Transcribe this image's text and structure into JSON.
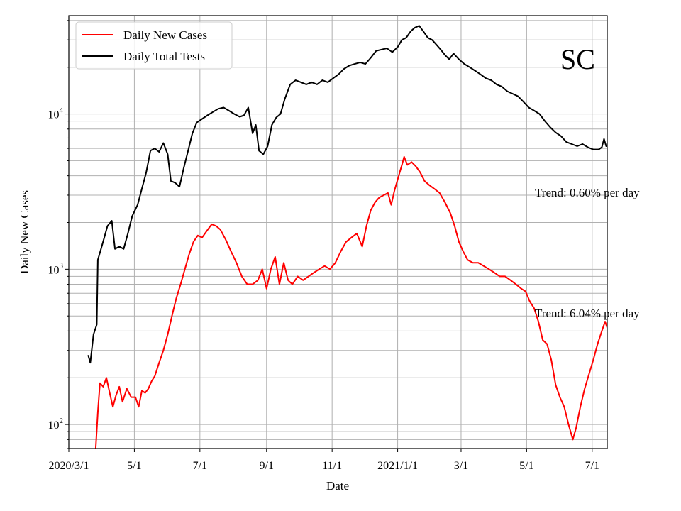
{
  "chart_data": {
    "type": "line",
    "xlabel": "Date",
    "ylabel": "Daily New Cases",
    "yscale": "log",
    "ylim": [
      70,
      43000
    ],
    "xlim": [
      "2020-03-01",
      "2021-07-15"
    ],
    "x_ticks": [
      {
        "date": "2020-03-01",
        "label": "2020/3/1"
      },
      {
        "date": "2020-05-01",
        "label": "5/1"
      },
      {
        "date": "2020-07-01",
        "label": "7/1"
      },
      {
        "date": "2020-09-01",
        "label": "9/1"
      },
      {
        "date": "2020-11-01",
        "label": "11/1"
      },
      {
        "date": "2021-01-01",
        "label": "2021/1/1"
      },
      {
        "date": "2021-03-01",
        "label": "3/1"
      },
      {
        "date": "2021-05-01",
        "label": "5/1"
      },
      {
        "date": "2021-07-01",
        "label": "7/1"
      }
    ],
    "y_ticks": [
      {
        "value": 100,
        "base": "10",
        "exp": "2"
      },
      {
        "value": 1000,
        "base": "10",
        "exp": "3"
      },
      {
        "value": 10000,
        "base": "10",
        "exp": "4"
      }
    ],
    "grid": true,
    "legend_position": "top-left",
    "state_label": "SC",
    "annotations": [
      {
        "text": "Trend: 0.60% per day",
        "series": "Daily Total Tests"
      },
      {
        "text": "Trend: 6.04% per day",
        "series": "Daily New Cases"
      }
    ],
    "series": [
      {
        "name": "Daily New Cases",
        "color": "#ff0000",
        "points": [
          [
            "2020-03-26",
            70
          ],
          [
            "2020-03-28",
            120
          ],
          [
            "2020-03-30",
            185
          ],
          [
            "2020-04-02",
            175
          ],
          [
            "2020-04-05",
            200
          ],
          [
            "2020-04-08",
            160
          ],
          [
            "2020-04-11",
            130
          ],
          [
            "2020-04-14",
            155
          ],
          [
            "2020-04-17",
            175
          ],
          [
            "2020-04-20",
            140
          ],
          [
            "2020-04-24",
            170
          ],
          [
            "2020-04-28",
            150
          ],
          [
            "2020-05-02",
            150
          ],
          [
            "2020-05-05",
            130
          ],
          [
            "2020-05-08",
            165
          ],
          [
            "2020-05-11",
            160
          ],
          [
            "2020-05-14",
            170
          ],
          [
            "2020-05-17",
            190
          ],
          [
            "2020-05-20",
            205
          ],
          [
            "2020-05-24",
            250
          ],
          [
            "2020-05-28",
            300
          ],
          [
            "2020-06-01",
            380
          ],
          [
            "2020-06-05",
            500
          ],
          [
            "2020-06-09",
            650
          ],
          [
            "2020-06-13",
            800
          ],
          [
            "2020-06-17",
            1000
          ],
          [
            "2020-06-21",
            1250
          ],
          [
            "2020-06-25",
            1500
          ],
          [
            "2020-06-29",
            1650
          ],
          [
            "2020-07-03",
            1600
          ],
          [
            "2020-07-07",
            1750
          ],
          [
            "2020-07-12",
            1950
          ],
          [
            "2020-07-16",
            1900
          ],
          [
            "2020-07-20",
            1800
          ],
          [
            "2020-07-25",
            1550
          ],
          [
            "2020-07-30",
            1300
          ],
          [
            "2020-08-04",
            1100
          ],
          [
            "2020-08-09",
            900
          ],
          [
            "2020-08-14",
            800
          ],
          [
            "2020-08-19",
            800
          ],
          [
            "2020-08-24",
            850
          ],
          [
            "2020-08-28",
            1000
          ],
          [
            "2020-09-01",
            750
          ],
          [
            "2020-09-05",
            1000
          ],
          [
            "2020-09-09",
            1200
          ],
          [
            "2020-09-13",
            800
          ],
          [
            "2020-09-17",
            1100
          ],
          [
            "2020-09-21",
            850
          ],
          [
            "2020-09-25",
            800
          ],
          [
            "2020-09-30",
            900
          ],
          [
            "2020-10-05",
            850
          ],
          [
            "2020-10-10",
            900
          ],
          [
            "2020-10-15",
            950
          ],
          [
            "2020-10-20",
            1000
          ],
          [
            "2020-10-25",
            1050
          ],
          [
            "2020-10-30",
            1000
          ],
          [
            "2020-11-04",
            1100
          ],
          [
            "2020-11-09",
            1300
          ],
          [
            "2020-11-14",
            1500
          ],
          [
            "2020-11-19",
            1600
          ],
          [
            "2020-11-24",
            1700
          ],
          [
            "2020-11-29",
            1400
          ],
          [
            "2020-12-03",
            1900
          ],
          [
            "2020-12-07",
            2400
          ],
          [
            "2020-12-11",
            2700
          ],
          [
            "2020-12-15",
            2900
          ],
          [
            "2020-12-19",
            3000
          ],
          [
            "2020-12-23",
            3100
          ],
          [
            "2020-12-26",
            2600
          ],
          [
            "2020-12-29",
            3200
          ],
          [
            "2021-01-02",
            4000
          ],
          [
            "2021-01-05",
            4700
          ],
          [
            "2021-01-07",
            5300
          ],
          [
            "2021-01-10",
            4700
          ],
          [
            "2021-01-14",
            4900
          ],
          [
            "2021-01-18",
            4600
          ],
          [
            "2021-01-22",
            4200
          ],
          [
            "2021-01-26",
            3700
          ],
          [
            "2021-01-30",
            3500
          ],
          [
            "2021-02-04",
            3300
          ],
          [
            "2021-02-09",
            3100
          ],
          [
            "2021-02-14",
            2700
          ],
          [
            "2021-02-19",
            2300
          ],
          [
            "2021-02-23",
            1900
          ],
          [
            "2021-02-27",
            1500
          ],
          [
            "2021-03-03",
            1300
          ],
          [
            "2021-03-07",
            1150
          ],
          [
            "2021-03-12",
            1100
          ],
          [
            "2021-03-17",
            1100
          ],
          [
            "2021-03-22",
            1050
          ],
          [
            "2021-03-27",
            1000
          ],
          [
            "2021-04-01",
            950
          ],
          [
            "2021-04-06",
            900
          ],
          [
            "2021-04-11",
            900
          ],
          [
            "2021-04-16",
            850
          ],
          [
            "2021-04-21",
            800
          ],
          [
            "2021-04-26",
            750
          ],
          [
            "2021-04-30",
            720
          ],
          [
            "2021-05-04",
            620
          ],
          [
            "2021-05-08",
            560
          ],
          [
            "2021-05-12",
            460
          ],
          [
            "2021-05-16",
            350
          ],
          [
            "2021-05-20",
            330
          ],
          [
            "2021-05-24",
            260
          ],
          [
            "2021-05-28",
            180
          ],
          [
            "2021-06-01",
            150
          ],
          [
            "2021-06-05",
            130
          ],
          [
            "2021-06-09",
            100
          ],
          [
            "2021-06-13",
            80
          ],
          [
            "2021-06-16",
            95
          ],
          [
            "2021-06-20",
            130
          ],
          [
            "2021-06-24",
            170
          ],
          [
            "2021-06-28",
            210
          ],
          [
            "2021-07-02",
            260
          ],
          [
            "2021-07-06",
            330
          ],
          [
            "2021-07-10",
            400
          ],
          [
            "2021-07-13",
            460
          ],
          [
            "2021-07-15",
            420
          ]
        ]
      },
      {
        "name": "Daily Total Tests",
        "color": "#000000",
        "points": [
          [
            "2020-03-19",
            280
          ],
          [
            "2020-03-21",
            250
          ],
          [
            "2020-03-24",
            380
          ],
          [
            "2020-03-27",
            440
          ],
          [
            "2020-03-28",
            1150
          ],
          [
            "2020-03-31",
            1350
          ],
          [
            "2020-04-03",
            1600
          ],
          [
            "2020-04-06",
            1900
          ],
          [
            "2020-04-10",
            2050
          ],
          [
            "2020-04-13",
            1350
          ],
          [
            "2020-04-17",
            1400
          ],
          [
            "2020-04-21",
            1350
          ],
          [
            "2020-04-25",
            1700
          ],
          [
            "2020-04-29",
            2200
          ],
          [
            "2020-05-04",
            2600
          ],
          [
            "2020-05-08",
            3300
          ],
          [
            "2020-05-12",
            4200
          ],
          [
            "2020-05-16",
            5800
          ],
          [
            "2020-05-20",
            6000
          ],
          [
            "2020-05-24",
            5700
          ],
          [
            "2020-05-28",
            6500
          ],
          [
            "2020-06-01",
            5500
          ],
          [
            "2020-06-04",
            3700
          ],
          [
            "2020-06-08",
            3600
          ],
          [
            "2020-06-12",
            3400
          ],
          [
            "2020-06-16",
            4500
          ],
          [
            "2020-06-20",
            5800
          ],
          [
            "2020-06-24",
            7500
          ],
          [
            "2020-06-28",
            8800
          ],
          [
            "2020-07-03",
            9300
          ],
          [
            "2020-07-08",
            9800
          ],
          [
            "2020-07-13",
            10300
          ],
          [
            "2020-07-18",
            10800
          ],
          [
            "2020-07-23",
            11000
          ],
          [
            "2020-07-28",
            10500
          ],
          [
            "2020-08-02",
            10000
          ],
          [
            "2020-08-07",
            9600
          ],
          [
            "2020-08-11",
            9800
          ],
          [
            "2020-08-15",
            11000
          ],
          [
            "2020-08-19",
            7500
          ],
          [
            "2020-08-22",
            8500
          ],
          [
            "2020-08-25",
            5800
          ],
          [
            "2020-08-29",
            5500
          ],
          [
            "2020-09-02",
            6200
          ],
          [
            "2020-09-06",
            8500
          ],
          [
            "2020-09-10",
            9500
          ],
          [
            "2020-09-14",
            10000
          ],
          [
            "2020-09-18",
            12500
          ],
          [
            "2020-09-23",
            15500
          ],
          [
            "2020-09-28",
            16500
          ],
          [
            "2020-10-03",
            16000
          ],
          [
            "2020-10-08",
            15500
          ],
          [
            "2020-10-13",
            16000
          ],
          [
            "2020-10-18",
            15500
          ],
          [
            "2020-10-23",
            16500
          ],
          [
            "2020-10-28",
            16000
          ],
          [
            "2020-11-02",
            17000
          ],
          [
            "2020-11-07",
            18000
          ],
          [
            "2020-11-12",
            19500
          ],
          [
            "2020-11-17",
            20500
          ],
          [
            "2020-11-22",
            21000
          ],
          [
            "2020-11-27",
            21500
          ],
          [
            "2020-12-02",
            21000
          ],
          [
            "2020-12-07",
            23000
          ],
          [
            "2020-12-12",
            25500
          ],
          [
            "2020-12-17",
            26000
          ],
          [
            "2020-12-22",
            26500
          ],
          [
            "2020-12-27",
            25000
          ],
          [
            "2021-01-01",
            27000
          ],
          [
            "2021-01-05",
            30000
          ],
          [
            "2021-01-09",
            31000
          ],
          [
            "2021-01-13",
            34000
          ],
          [
            "2021-01-17",
            36000
          ],
          [
            "2021-01-21",
            37000
          ],
          [
            "2021-01-25",
            34000
          ],
          [
            "2021-01-29",
            31000
          ],
          [
            "2021-02-02",
            30000
          ],
          [
            "2021-02-06",
            28000
          ],
          [
            "2021-02-10",
            26000
          ],
          [
            "2021-02-14",
            24000
          ],
          [
            "2021-02-18",
            22500
          ],
          [
            "2021-02-22",
            24500
          ],
          [
            "2021-02-27",
            22500
          ],
          [
            "2021-03-04",
            21000
          ],
          [
            "2021-03-09",
            20000
          ],
          [
            "2021-03-14",
            19000
          ],
          [
            "2021-03-19",
            18000
          ],
          [
            "2021-03-24",
            17000
          ],
          [
            "2021-03-29",
            16500
          ],
          [
            "2021-04-03",
            15500
          ],
          [
            "2021-04-08",
            15000
          ],
          [
            "2021-04-13",
            14000
          ],
          [
            "2021-04-18",
            13500
          ],
          [
            "2021-04-23",
            13000
          ],
          [
            "2021-04-28",
            12000
          ],
          [
            "2021-05-03",
            11000
          ],
          [
            "2021-05-08",
            10500
          ],
          [
            "2021-05-13",
            10000
          ],
          [
            "2021-05-18",
            9000
          ],
          [
            "2021-05-23",
            8200
          ],
          [
            "2021-05-28",
            7600
          ],
          [
            "2021-06-02",
            7200
          ],
          [
            "2021-06-07",
            6600
          ],
          [
            "2021-06-12",
            6400
          ],
          [
            "2021-06-17",
            6200
          ],
          [
            "2021-06-22",
            6400
          ],
          [
            "2021-06-27",
            6100
          ],
          [
            "2021-07-02",
            5900
          ],
          [
            "2021-07-07",
            5900
          ],
          [
            "2021-07-10",
            6100
          ],
          [
            "2021-07-12",
            6900
          ],
          [
            "2021-07-14",
            6200
          ],
          [
            "2021-07-15",
            6300
          ]
        ]
      }
    ]
  }
}
